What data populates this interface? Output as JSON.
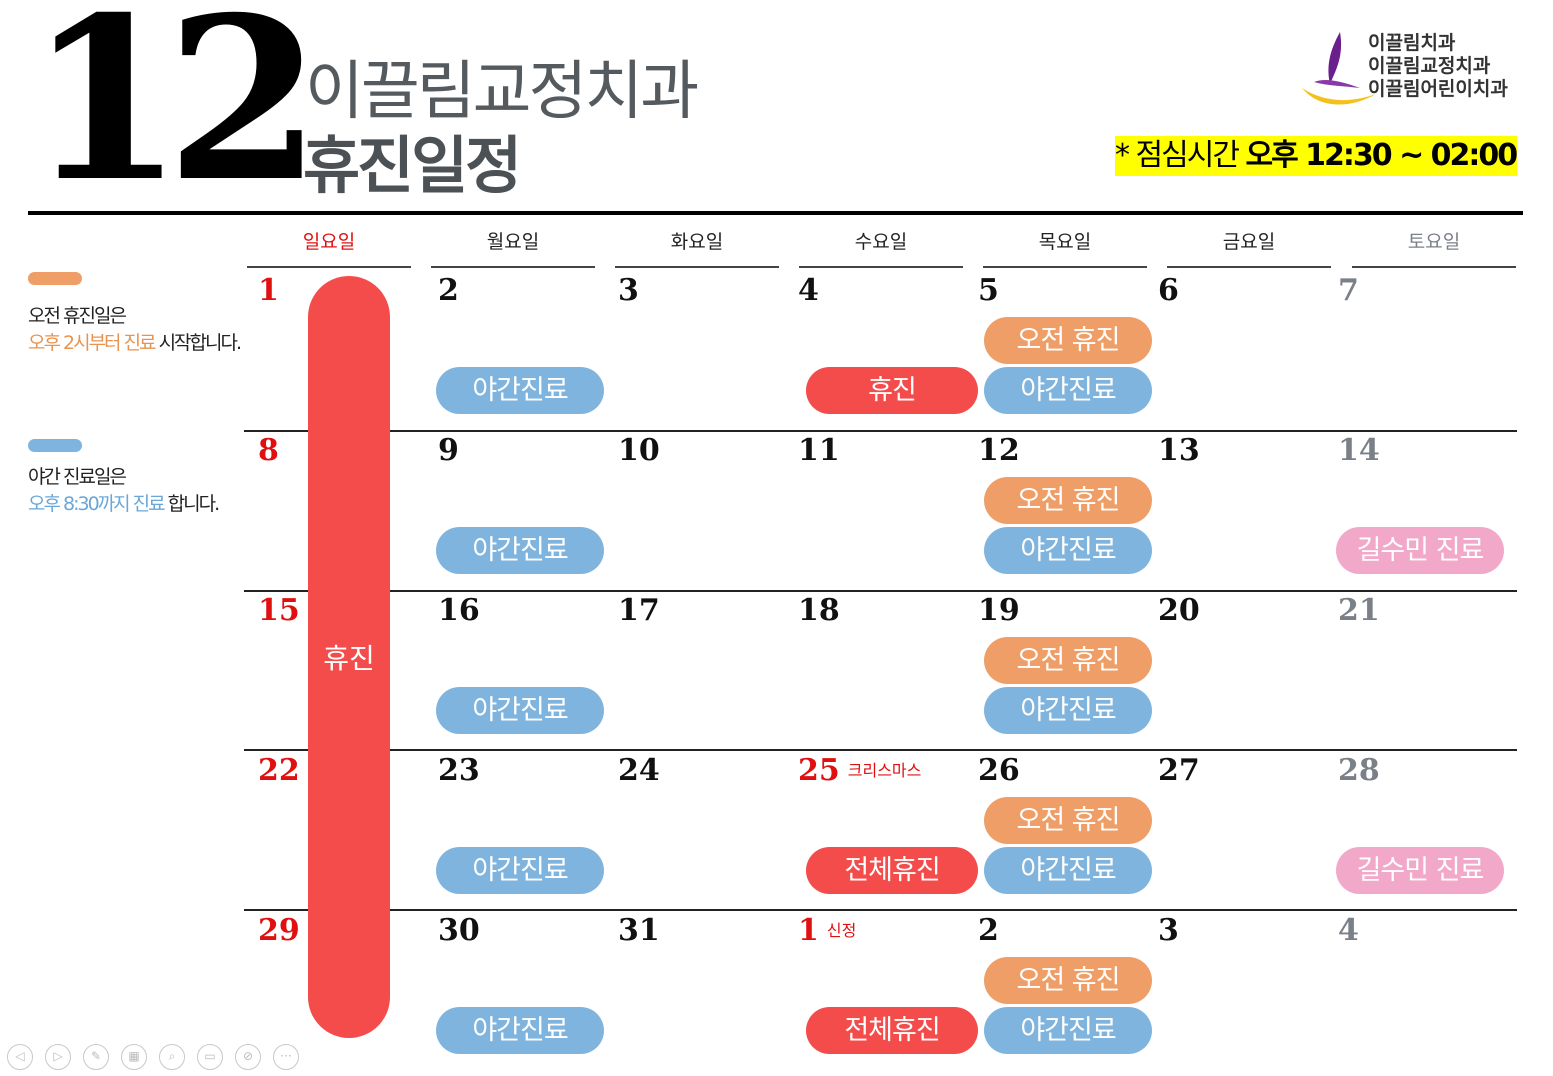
{
  "header": {
    "month": "12",
    "clinic_title": "이끌림교정치과",
    "subtitle": "휴진일정",
    "logo_lines": [
      "이끌림치과",
      "이끌림교정치과",
      "이끌림어린이치과"
    ],
    "lunch_label": "* 점심시간",
    "lunch_time": "오후 12:30 ~ 02:00"
  },
  "colors": {
    "morning_off": "#ee9e66",
    "night_clinic": "#7fb4de",
    "closed": "#f44b4b",
    "doctor": "#f2a9c9",
    "lunch_bg": "#ffff00"
  },
  "legend": [
    {
      "line1": "오전 휴진일은",
      "line2_highlight": "오후 2시부터 진료",
      "line2_rest": " 시작합니다."
    },
    {
      "line1": "야간 진료일은",
      "line2_highlight": "오후 8:30까지 진료",
      "line2_rest": " 합니다."
    }
  ],
  "weekdays": [
    "일요일",
    "월요일",
    "화요일",
    "수요일",
    "목요일",
    "금요일",
    "토요일"
  ],
  "sunday_closed_label": "휴진",
  "weeks": [
    [
      "1",
      "2",
      "3",
      "4",
      "5",
      "6",
      "7"
    ],
    [
      "8",
      "9",
      "10",
      "11",
      "12",
      "13",
      "14"
    ],
    [
      "15",
      "16",
      "17",
      "18",
      "19",
      "20",
      "21"
    ],
    [
      "22",
      "23",
      "24",
      "25",
      "26",
      "27",
      "28"
    ],
    [
      "29",
      "30",
      "31",
      "1",
      "2",
      "3",
      "4"
    ]
  ],
  "holidays": [
    {
      "week": 3,
      "day": 3,
      "label": "크리스마스"
    },
    {
      "week": 4,
      "day": 3,
      "label": "신정"
    }
  ],
  "events": [
    {
      "week": 0,
      "day": 4,
      "slot": "top",
      "type": "orange",
      "label": "오전 휴진"
    },
    {
      "week": 0,
      "day": 1,
      "slot": "bottom",
      "type": "blue",
      "label": "야간진료"
    },
    {
      "week": 0,
      "day": 3,
      "slot": "bottom",
      "type": "red",
      "label": "휴진"
    },
    {
      "week": 0,
      "day": 4,
      "slot": "bottom",
      "type": "blue",
      "label": "야간진료"
    },
    {
      "week": 1,
      "day": 4,
      "slot": "top",
      "type": "orange",
      "label": "오전 휴진"
    },
    {
      "week": 1,
      "day": 1,
      "slot": "bottom",
      "type": "blue",
      "label": "야간진료"
    },
    {
      "week": 1,
      "day": 4,
      "slot": "bottom",
      "type": "blue",
      "label": "야간진료"
    },
    {
      "week": 1,
      "day": 6,
      "slot": "bottom",
      "type": "pink",
      "label": "길수민 진료"
    },
    {
      "week": 2,
      "day": 4,
      "slot": "top",
      "type": "orange",
      "label": "오전 휴진"
    },
    {
      "week": 2,
      "day": 1,
      "slot": "bottom",
      "type": "blue",
      "label": "야간진료"
    },
    {
      "week": 2,
      "day": 4,
      "slot": "bottom",
      "type": "blue",
      "label": "야간진료"
    },
    {
      "week": 3,
      "day": 4,
      "slot": "top",
      "type": "orange",
      "label": "오전 휴진"
    },
    {
      "week": 3,
      "day": 1,
      "slot": "bottom",
      "type": "blue",
      "label": "야간진료"
    },
    {
      "week": 3,
      "day": 3,
      "slot": "bottom",
      "type": "red",
      "label": "전체휴진"
    },
    {
      "week": 3,
      "day": 4,
      "slot": "bottom",
      "type": "blue",
      "label": "야간진료"
    },
    {
      "week": 3,
      "day": 6,
      "slot": "bottom",
      "type": "pink",
      "label": "길수민 진료"
    },
    {
      "week": 4,
      "day": 4,
      "slot": "top",
      "type": "orange",
      "label": "오전 휴진"
    },
    {
      "week": 4,
      "day": 1,
      "slot": "bottom",
      "type": "blue",
      "label": "야간진료"
    },
    {
      "week": 4,
      "day": 3,
      "slot": "bottom",
      "type": "red",
      "label": "전체휴진"
    },
    {
      "week": 4,
      "day": 4,
      "slot": "bottom",
      "type": "blue",
      "label": "야간진료"
    }
  ],
  "controls": [
    "previous-icon",
    "next-icon",
    "pen-icon",
    "slides-icon",
    "zoom-icon",
    "subtitles-icon",
    "camera-off-icon",
    "more-icon"
  ]
}
